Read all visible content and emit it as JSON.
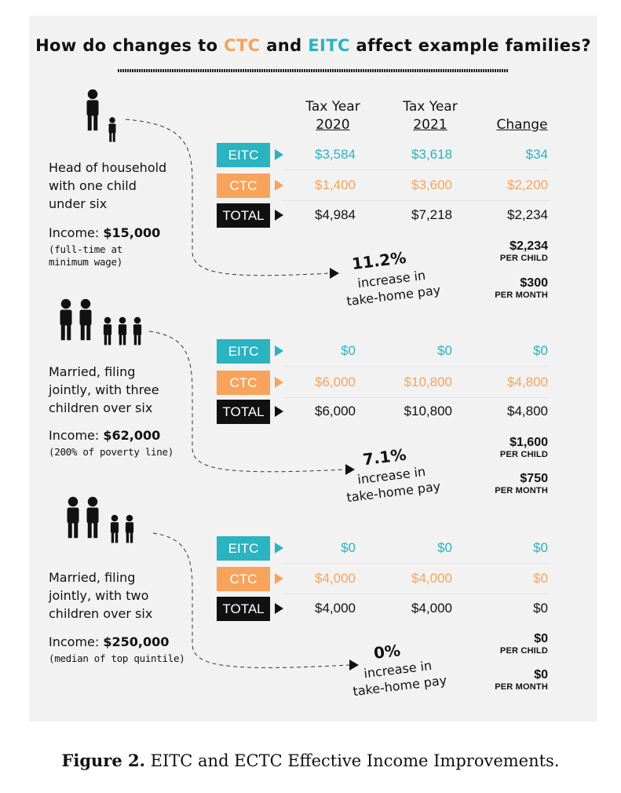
{
  "title": {
    "prefix": "How do changes to ",
    "ctc": "CTC",
    "and": " and ",
    "eitc": "EITC",
    "suffix": " affect example families?"
  },
  "columns": {
    "y2020_line1": "Tax Year",
    "y2020_line2": "2020",
    "y2021_line1": "Tax Year",
    "y2021_line2": "2021",
    "change": "Change"
  },
  "labels": {
    "eitc": "EITC",
    "ctc": "CTC",
    "total": "TOTAL"
  },
  "colors": {
    "eitc": "#2ab3c0",
    "ctc": "#f7a35c",
    "total": "#111111",
    "panel": "#f2f2f2"
  },
  "families": [
    {
      "desc": [
        "Head of household",
        "with one child",
        "under six"
      ],
      "income_label": "Income: ",
      "income_value": "$15,000",
      "income_note": [
        "(full-time at",
        "minimum wage)"
      ],
      "eitc": [
        "$3,584",
        "$3,618",
        "$34"
      ],
      "ctc": [
        "$1,400",
        "$3,600",
        "$2,200"
      ],
      "total": [
        "$4,984",
        "$7,218",
        "$2,234"
      ],
      "per_child_value": "$2,234",
      "per_child_label": "PER CHILD",
      "per_month_value": "$300",
      "per_month_label": "PER MONTH",
      "pct": "11.2%",
      "inc_line1": "increase in",
      "inc_line2": "take-home pay",
      "icon": "adult-with-one-child-icon"
    },
    {
      "desc": [
        "Married, filing",
        "jointly, with three",
        "children over six"
      ],
      "income_label": "Income: ",
      "income_value": "$62,000",
      "income_note": [
        "(200% of poverty line)"
      ],
      "eitc": [
        "$0",
        "$0",
        "$0"
      ],
      "ctc": [
        "$6,000",
        "$10,800",
        "$4,800"
      ],
      "total": [
        "$6,000",
        "$10,800",
        "$4,800"
      ],
      "per_child_value": "$1,600",
      "per_child_label": "PER CHILD",
      "per_month_value": "$750",
      "per_month_label": "PER MONTH",
      "pct": "7.1%",
      "inc_line1": "increase in",
      "inc_line2": "take-home pay",
      "icon": "two-adults-three-children-icon"
    },
    {
      "desc": [
        "Married, filing",
        "jointly, with two",
        "children over six"
      ],
      "income_label": "Income: ",
      "income_value": "$250,000",
      "income_note": [
        "(median of top quintile)"
      ],
      "eitc": [
        "$0",
        "$0",
        "$0"
      ],
      "ctc": [
        "$4,000",
        "$4,000",
        "$0"
      ],
      "total": [
        "$4,000",
        "$4,000",
        "$0"
      ],
      "per_child_value": "$0",
      "per_child_label": "PER CHILD",
      "per_month_value": "$0",
      "per_month_label": "PER MONTH",
      "pct": "0%",
      "inc_line1": "increase in",
      "inc_line2": "take-home pay",
      "icon": "two-adults-two-children-icon"
    }
  ],
  "caption": {
    "bold": "Figure 2.",
    "text": " EITC and ECTC Effective Income Improvements."
  }
}
